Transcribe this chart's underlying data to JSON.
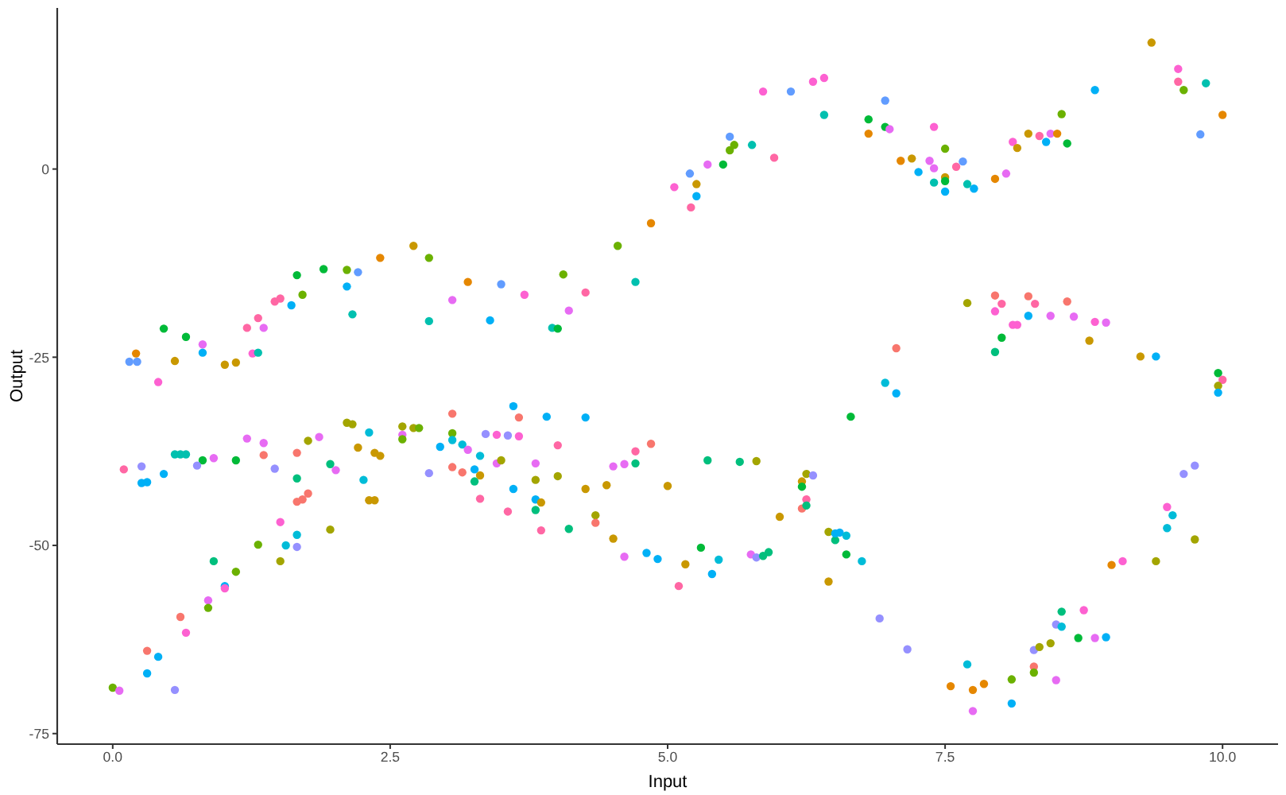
{
  "chart_data": {
    "type": "scatter",
    "xlabel": "Input",
    "ylabel": "Output",
    "marker": "circle",
    "xlim": [
      -0.5,
      10.5
    ],
    "ylim": [
      -76.4,
      21.4
    ],
    "xticks": [
      {
        "value": 0,
        "label": "0.0"
      },
      {
        "value": 2.5,
        "label": "2.5"
      },
      {
        "value": 5,
        "label": "5.0"
      },
      {
        "value": 7.5,
        "label": "7.5"
      },
      {
        "value": 10,
        "label": "10.0"
      }
    ],
    "yticks": [
      -75,
      -50,
      -25,
      0
    ],
    "x": [
      0.21,
      0.15,
      0.22,
      0.46,
      0.56,
      0.66,
      0.81,
      0.81,
      1.01,
      1.11,
      1.26,
      1.31,
      1.21,
      1.31,
      1.36,
      1.46,
      1.51,
      1.61,
      1.66,
      1.71,
      1.9,
      2.11,
      2.21,
      2.11,
      2.16,
      2.41,
      2.71,
      2.85,
      2.85,
      3.2,
      3.06,
      3.4,
      0.41,
      3.5,
      3.71,
      3.96,
      4.01,
      4.06,
      4.11,
      4.26,
      4.55,
      4.71,
      4.85,
      5.06,
      5.2,
      5.21,
      5.26,
      5.26,
      5.36,
      5.5,
      5.56,
      5.6,
      5.56,
      5.76,
      5.96,
      5.86,
      6.11,
      6.31,
      6.41,
      6.41,
      6.81,
      6.81,
      6.96,
      6.96,
      7.0,
      7.4,
      7.1,
      7.2,
      7.26,
      7.36,
      7.4,
      7.5,
      7.5,
      7.5,
      7.5,
      7.4,
      7.6,
      7.66,
      7.7,
      7.76,
      7.95,
      8.05,
      8.11,
      8.15,
      8.25,
      8.35,
      8.41,
      8.45,
      8.51,
      8.55,
      8.6,
      8.85,
      9.36,
      9.6,
      9.6,
      9.65,
      9.85,
      10.0,
      9.8,
      7.7,
      7.95,
      8.01,
      7.95,
      8.01,
      7.95,
      8.25,
      8.31,
      8.11,
      8.15,
      8.25,
      8.45,
      8.6,
      8.66,
      8.85,
      8.95,
      8.8,
      7.06,
      9.26,
      9.4,
      9.96,
      10.0,
      6.96,
      7.06,
      9.96,
      9.96,
      9.65,
      9.75,
      9.5,
      9.55,
      9.5,
      9.75,
      9.0,
      9.1,
      9.4,
      8.55,
      8.75,
      8.5,
      8.55,
      8.7,
      8.85,
      8.95,
      8.3,
      8.35,
      8.45,
      8.3,
      8.3,
      8.1,
      8.5,
      7.7,
      7.55,
      7.75,
      7.85,
      7.75,
      8.1,
      6.91,
      7.16,
      6.65,
      3.61,
      3.66,
      3.91,
      4.26,
      3.36,
      3.46,
      3.56,
      3.66,
      4.01,
      3.31,
      3.46,
      3.5,
      3.31,
      3.81,
      3.81,
      4.01,
      3.61,
      3.31,
      3.56,
      3.81,
      3.86,
      3.81,
      3.86,
      4.11,
      4.26,
      4.45,
      4.35,
      4.35,
      4.51,
      4.51,
      4.61,
      4.71,
      4.71,
      4.85,
      5.0,
      4.61,
      4.81,
      4.91,
      5.1,
      5.16,
      5.36,
      5.3,
      5.46,
      5.4,
      5.65,
      5.8,
      6.01,
      5.75,
      5.8,
      5.86,
      5.91,
      6.21,
      6.25,
      6.31,
      6.21,
      6.21,
      6.25,
      6.25,
      6.45,
      6.51,
      6.51,
      6.55,
      6.61,
      6.45,
      6.61,
      6.75,
      0.1,
      0.26,
      0.26,
      0.31,
      0.46,
      0.56,
      0.61,
      0.66,
      0.81,
      0.76,
      0.91,
      1.11,
      1.21,
      1.36,
      1.36,
      1.46,
      1.66,
      1.76,
      1.86,
      1.66,
      1.66,
      1.71,
      1.76,
      1.51,
      1.66,
      1.56,
      1.66,
      1.51,
      1.31,
      1.11,
      0.91,
      1.01,
      1.01,
      0.86,
      0.86,
      0.61,
      0.66,
      0.31,
      0.41,
      0.31,
      0.56,
      0.0,
      0.06,
      1.96,
      1.96,
      2.01,
      2.11,
      2.16,
      2.21,
      2.31,
      2.26,
      2.36,
      2.41,
      2.31,
      2.36,
      2.61,
      2.61,
      2.61,
      2.71,
      2.76,
      3.06,
      3.06,
      3.06,
      2.95,
      2.85,
      3.06,
      3.15,
      3.2,
      3.15,
      3.26,
      3.26
    ],
    "values": [
      -24.5,
      -25.6,
      -25.6,
      -21.2,
      -25.5,
      -22.3,
      -23.3,
      -24.4,
      -26.0,
      -25.7,
      -24.5,
      -24.4,
      -21.1,
      -19.8,
      -21.1,
      -17.6,
      -17.2,
      -18.1,
      -14.1,
      -16.7,
      -13.3,
      -13.4,
      -13.7,
      -15.6,
      -19.3,
      -11.8,
      -10.2,
      -11.8,
      -20.2,
      -15.0,
      -17.4,
      -20.1,
      -28.3,
      -15.3,
      -16.7,
      -21.1,
      -21.2,
      -14.0,
      -18.8,
      -16.4,
      -10.2,
      -15.0,
      -7.2,
      -2.4,
      -0.6,
      -5.1,
      -2.0,
      -3.6,
      0.6,
      0.6,
      2.5,
      3.2,
      4.3,
      3.2,
      1.5,
      10.3,
      10.3,
      11.6,
      12.1,
      7.2,
      6.6,
      4.7,
      5.6,
      9.1,
      5.3,
      5.6,
      1.1,
      1.4,
      -0.4,
      1.1,
      0.1,
      2.7,
      -1.1,
      -1.6,
      -3.0,
      -1.8,
      0.3,
      1.0,
      -2.0,
      -2.6,
      -1.3,
      -0.6,
      3.6,
      2.8,
      4.7,
      4.4,
      3.6,
      4.7,
      4.7,
      7.3,
      3.4,
      10.5,
      16.8,
      13.3,
      11.6,
      10.5,
      11.4,
      7.2,
      4.6,
      -17.8,
      -16.8,
      -17.9,
      -18.9,
      -22.4,
      -24.3,
      -16.9,
      -17.9,
      -20.7,
      -20.7,
      -19.5,
      -19.5,
      -17.6,
      -19.6,
      -20.3,
      -20.4,
      -22.8,
      -23.8,
      -24.9,
      -24.9,
      -27.1,
      -28.0,
      -28.4,
      -29.8,
      -28.8,
      -29.7,
      -40.5,
      -39.4,
      -44.9,
      -46.0,
      -47.7,
      -49.2,
      -52.6,
      -52.1,
      -52.1,
      -58.8,
      -58.6,
      -60.5,
      -60.8,
      -62.3,
      -62.3,
      -62.2,
      -63.9,
      -63.5,
      -63.0,
      -66.1,
      -66.9,
      -67.8,
      -67.9,
      -65.8,
      -68.7,
      -69.2,
      -68.4,
      -72.0,
      -71.0,
      -59.7,
      -63.8,
      -32.9,
      -31.5,
      -33.0,
      -32.9,
      -33.0,
      -35.2,
      -35.3,
      -35.4,
      -35.5,
      -36.7,
      -38.1,
      -39.1,
      -38.7,
      -40.7,
      -39.1,
      -41.3,
      -40.8,
      -42.5,
      -43.8,
      -45.5,
      -43.9,
      -44.3,
      -45.3,
      -48.0,
      -47.8,
      -42.5,
      -42.0,
      -46.0,
      -47.0,
      -49.1,
      -39.5,
      -39.2,
      -37.5,
      -39.1,
      -36.5,
      -42.1,
      -51.5,
      -51.0,
      -51.8,
      -55.4,
      -52.5,
      -38.7,
      -50.3,
      -51.9,
      -53.8,
      -38.9,
      -38.8,
      -46.2,
      -51.2,
      -51.6,
      -51.4,
      -50.9,
      -41.5,
      -40.5,
      -40.7,
      -42.2,
      -45.1,
      -43.9,
      -44.7,
      -48.2,
      -49.3,
      -48.4,
      -48.3,
      -48.7,
      -54.8,
      -51.2,
      -52.1,
      -39.9,
      -39.5,
      -41.7,
      -41.6,
      -40.5,
      -37.9,
      -37.9,
      -37.9,
      -38.7,
      -39.4,
      -38.4,
      -38.7,
      -35.8,
      -36.4,
      -38.0,
      -39.8,
      -37.7,
      -36.1,
      -35.6,
      -41.1,
      -44.2,
      -43.9,
      -43.1,
      -46.9,
      -48.6,
      -50.0,
      -50.2,
      -52.1,
      -49.9,
      -53.5,
      -52.1,
      -55.4,
      -55.7,
      -57.3,
      -58.3,
      -59.5,
      -61.6,
      -64.0,
      -64.8,
      -67.0,
      -69.2,
      -68.9,
      -69.3,
      -47.9,
      -39.2,
      -40.0,
      -33.7,
      -33.9,
      -37.0,
      -35.0,
      -41.3,
      -37.7,
      -38.1,
      -44.0,
      -44.0,
      -34.2,
      -35.3,
      -35.9,
      -34.4,
      -34.4,
      -32.5,
      -35.1,
      -36.0,
      -36.9,
      -40.4,
      -39.6,
      -36.6,
      -37.3,
      -40.3,
      -39.9,
      -41.5
    ],
    "colors": [
      "#E58700",
      "#619CFF",
      "#619CFF",
      "#00BA38",
      "#C99800",
      "#00BA38",
      "#E76BF3",
      "#00B0F6",
      "#C99800",
      "#C99800",
      "#FD61D1",
      "#00C0AF",
      "#FF67A4",
      "#FF67A4",
      "#E76BF3",
      "#FF67A4",
      "#FF67A4",
      "#00B0F6",
      "#00BA38",
      "#6BB100",
      "#00BA38",
      "#6BB100",
      "#619CFF",
      "#00B0F6",
      "#00C0AF",
      "#E58700",
      "#C99800",
      "#6BB100",
      "#00C0AF",
      "#E58700",
      "#E76BF3",
      "#00B0F6",
      "#FD61D1",
      "#619CFF",
      "#FD61D1",
      "#00C0AF",
      "#00BA38",
      "#6BB100",
      "#E76BF3",
      "#FF67A4",
      "#6BB100",
      "#00C0AF",
      "#E58700",
      "#FD61D1",
      "#619CFF",
      "#FF67A4",
      "#C99800",
      "#00B0F6",
      "#E76BF3",
      "#00BA38",
      "#6BB100",
      "#6BB100",
      "#619CFF",
      "#00C0AF",
      "#FF67A4",
      "#FD61D1",
      "#619CFF",
      "#FD61D1",
      "#FD61D1",
      "#00C0AF",
      "#00BA38",
      "#E58700",
      "#00BA38",
      "#619CFF",
      "#E76BF3",
      "#FD61D1",
      "#E58700",
      "#C99800",
      "#00B0F6",
      "#E76BF3",
      "#E76BF3",
      "#6BB100",
      "#C99800",
      "#00BA38",
      "#00B0F6",
      "#00C0AF",
      "#FF67A4",
      "#619CFF",
      "#00C0AF",
      "#00B0F6",
      "#E58700",
      "#E76BF3",
      "#FD61D1",
      "#C99800",
      "#C99800",
      "#FF67A4",
      "#00B0F6",
      "#E76BF3",
      "#E58700",
      "#6BB100",
      "#00BA38",
      "#00B0F6",
      "#C99800",
      "#FD61D1",
      "#FF67A4",
      "#6BB100",
      "#00C0AF",
      "#E58700",
      "#619CFF",
      "#A3A500",
      "#F8766D",
      "#FF67A4",
      "#FD61D1",
      "#00BA38",
      "#00BF7D",
      "#F8766D",
      "#FF67A4",
      "#FD61D1",
      "#FD61D1",
      "#00B0F6",
      "#E76BF3",
      "#F8766D",
      "#E76BF3",
      "#FD61D1",
      "#E76BF3",
      "#C99800",
      "#F8766D",
      "#C99800",
      "#00B0F6",
      "#00BA38",
      "#FF67A4",
      "#00BCD8",
      "#00B0F6",
      "#A3A500",
      "#00B0F6",
      "#9590FF",
      "#9590FF",
      "#FD61D1",
      "#00BCD8",
      "#00BCD8",
      "#A3A500",
      "#E58700",
      "#FD61D1",
      "#A3A500",
      "#00BF7D",
      "#FD61D1",
      "#9590FF",
      "#00BCD8",
      "#00BA38",
      "#E76BF3",
      "#00B0F6",
      "#9590FF",
      "#A3A500",
      "#A3A500",
      "#F8766D",
      "#6BB100",
      "#6BB100",
      "#E76BF3",
      "#00BCD8",
      "#E58700",
      "#E58700",
      "#E58700",
      "#E76BF3",
      "#00B0F6",
      "#9590FF",
      "#9590FF",
      "#00BA38",
      "#00B0F6",
      "#F8766D",
      "#00B0F6",
      "#00B0F6",
      "#9590FF",
      "#FD61D1",
      "#9590FF",
      "#FD61D1",
      "#FF67A4",
      "#00BCD8",
      "#E76BF3",
      "#A3A500",
      "#C99800",
      "#E76BF3",
      "#A3A500",
      "#A3A500",
      "#00B0F6",
      "#FF67A4",
      "#FF67A4",
      "#00B0F6",
      "#C99800",
      "#00BF7D",
      "#FF67A4",
      "#00BF7D",
      "#C99800",
      "#C99800",
      "#A3A500",
      "#F8766D",
      "#C99800",
      "#E76BF3",
      "#E76BF3",
      "#FF67A4",
      "#00BF7D",
      "#F8766D",
      "#C99800",
      "#E76BF3",
      "#00B0F6",
      "#00B0F6",
      "#FF67A4",
      "#C99800",
      "#00BF7D",
      "#00BA38",
      "#00BCD8",
      "#00B0F6",
      "#00BF7D",
      "#A3A500",
      "#C99800",
      "#E76BF3",
      "#9590FF",
      "#00BF7D",
      "#00BF7D",
      "#C99800",
      "#A3A500",
      "#9590FF",
      "#00BA38",
      "#F8766D",
      "#FF67A4",
      "#00BF7D",
      "#A3A500",
      "#00BF7D",
      "#00B0F6",
      "#00B0F6",
      "#00BCD8",
      "#C99800",
      "#00BA38",
      "#00BCD8",
      "#FF67A4",
      "#9590FF",
      "#00B0F6",
      "#00B0F6",
      "#00B0F6",
      "#00C0AF",
      "#00C0AF",
      "#00C0AF",
      "#00BA38",
      "#9590FF",
      "#E76BF3",
      "#00BA38",
      "#E76BF3",
      "#E76BF3",
      "#F8766D",
      "#9590FF",
      "#F8766D",
      "#A3A500",
      "#E76BF3",
      "#00BF7D",
      "#F8766D",
      "#F8766D",
      "#F8766D",
      "#FD61D1",
      "#00BCD8",
      "#00BCD8",
      "#9590FF",
      "#A3A500",
      "#6BB100",
      "#6BB100",
      "#00BF7D",
      "#00B0F6",
      "#FD61D1",
      "#E76BF3",
      "#6BB100",
      "#F8766D",
      "#FD61D1",
      "#F8766D",
      "#00B0F6",
      "#00B0F6",
      "#9590FF",
      "#6BB100",
      "#E76BF3",
      "#A3A500",
      "#00BF7D",
      "#E76BF3",
      "#A3A500",
      "#A3A500",
      "#C99800",
      "#00BCD8",
      "#00BCD8",
      "#C99800",
      "#C99800",
      "#C99800",
      "#C99800",
      "#A3A500",
      "#E76BF3",
      "#6BB100",
      "#A3A500",
      "#6BB100",
      "#F8766D",
      "#6BB100",
      "#00BCD8",
      "#00B0F6",
      "#9590FF",
      "#F8766D",
      "#00BCD8",
      "#E76BF3",
      "#F8766D",
      "#00B0F6",
      "#00BF7D"
    ]
  }
}
